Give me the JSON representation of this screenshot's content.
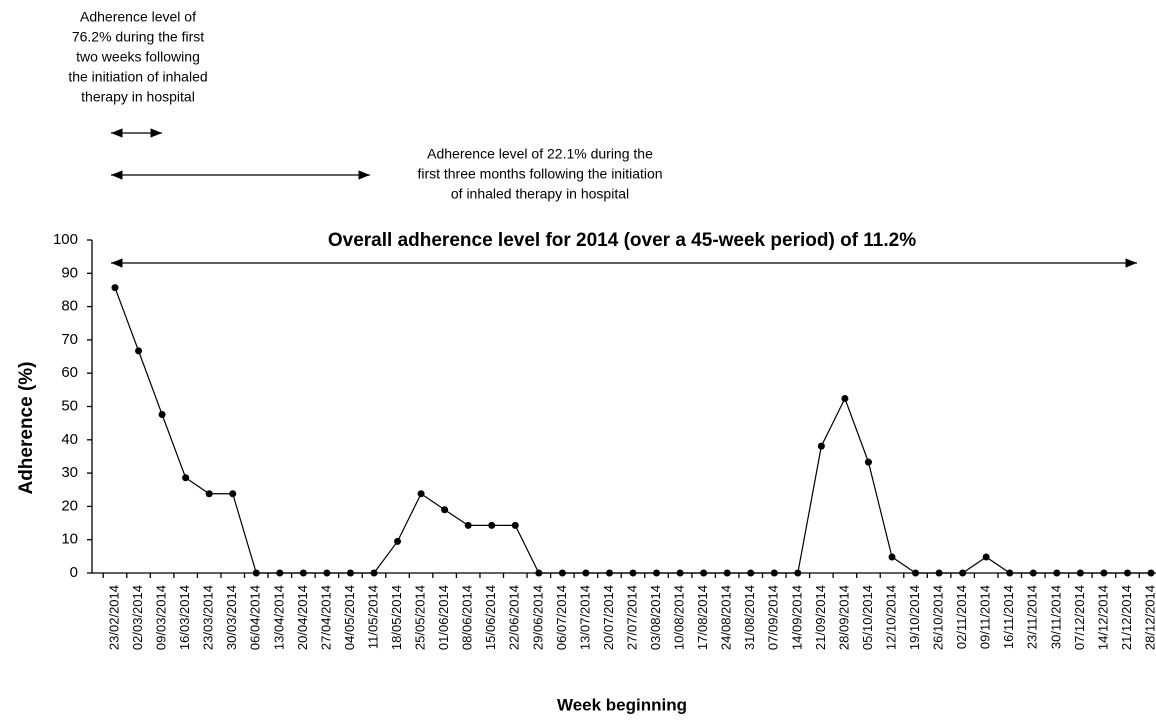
{
  "chart_data": {
    "type": "line",
    "y_label": "Adherence (%)",
    "x_label": "Week beginning",
    "annotations": [
      {
        "lines": [
          "Adherence level of",
          "76.2% during the first",
          "two weeks following",
          "the initiation of inhaled",
          "therapy in hospital"
        ]
      },
      {
        "lines": [
          "Adherence level of 22.1% during the",
          "first three months following the initiation",
          "of inhaled therapy in hospital"
        ]
      },
      {
        "lines": [
          "Overall adherence level for 2014 (over a 45-week period) of 11.2%"
        ]
      }
    ],
    "categories": [
      "23/02/2014",
      "02/03/2014",
      "09/03/2014",
      "16/03/2014",
      "23/03/2014",
      "30/03/2014",
      "06/04/2014",
      "13/04/2014",
      "20/04/2014",
      "27/04/2014",
      "04/05/2014",
      "11/05/2014",
      "18/05/2014",
      "25/05/2014",
      "01/06/2014",
      "08/06/2014",
      "15/06/2014",
      "22/06/2014",
      "29/06/2014",
      "06/07/2014",
      "13/07/2014",
      "20/07/2014",
      "27/07/2014",
      "03/08/2014",
      "10/08/2014",
      "17/08/2014",
      "24/08/2014",
      "31/08/2014",
      "07/09/2014",
      "14/09/2014",
      "21/09/2014",
      "28/09/2014",
      "05/10/2014",
      "12/10/2014",
      "19/10/2014",
      "26/10/2014",
      "02/11/2014",
      "09/11/2014",
      "16/11/2014",
      "23/11/2014",
      "30/11/2014",
      "07/12/2014",
      "14/12/2014",
      "21/12/2014",
      "28/12/2014"
    ],
    "values": [
      85.7,
      66.7,
      47.6,
      28.6,
      23.8,
      23.8,
      0,
      0,
      0,
      0,
      0,
      0,
      9.5,
      23.8,
      19,
      14.3,
      14.3,
      14.3,
      0,
      0,
      0,
      0,
      0,
      0,
      0,
      0,
      0,
      0,
      0,
      0,
      38.1,
      52.4,
      33.3,
      4.8,
      0,
      0,
      0,
      4.8,
      0,
      0,
      0,
      0,
      0,
      0,
      0
    ],
    "color": "#000000",
    "ylim": [
      0,
      100
    ],
    "yticks": [
      0,
      10,
      20,
      30,
      40,
      50,
      60,
      70,
      80,
      90,
      100
    ]
  }
}
